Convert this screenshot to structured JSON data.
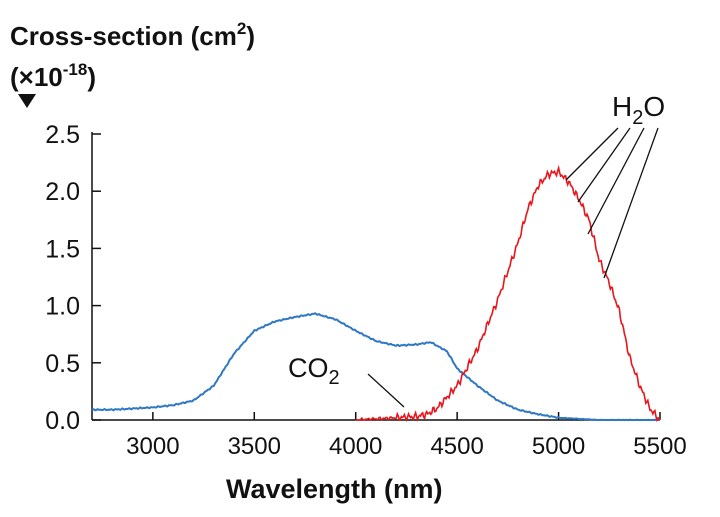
{
  "chart_data": {
    "type": "line",
    "ylabel_line1": "Cross-section (cm",
    "ylabel_sup1": "2",
    "ylabel_close": ")",
    "ylabel_line2_a": "(×10",
    "ylabel_sup2": "-18",
    "ylabel_line2_b": ")",
    "xlabel": "Wavelength (nm)",
    "xlim": [
      2700,
      5500
    ],
    "ylim": [
      0,
      2.5
    ],
    "x_ticks": [
      3000,
      3500,
      4000,
      4500,
      5000,
      5500
    ],
    "y_ticks": [
      "0.0",
      "0.5",
      "1.0",
      "1.5",
      "2.0",
      "2.5"
    ],
    "grid": false,
    "series": [
      {
        "name": "CO2",
        "color": "#2f78c4",
        "points": [
          [
            2700,
            0.09
          ],
          [
            2800,
            0.09
          ],
          [
            2900,
            0.1
          ],
          [
            3000,
            0.11
          ],
          [
            3100,
            0.13
          ],
          [
            3200,
            0.17
          ],
          [
            3300,
            0.3
          ],
          [
            3400,
            0.58
          ],
          [
            3500,
            0.78
          ],
          [
            3600,
            0.86
          ],
          [
            3700,
            0.9
          ],
          [
            3800,
            0.93
          ],
          [
            3900,
            0.88
          ],
          [
            4000,
            0.78
          ],
          [
            4100,
            0.69
          ],
          [
            4200,
            0.65
          ],
          [
            4300,
            0.66
          ],
          [
            4370,
            0.68
          ],
          [
            4450,
            0.6
          ],
          [
            4500,
            0.45
          ],
          [
            4600,
            0.3
          ],
          [
            4700,
            0.17
          ],
          [
            4800,
            0.09
          ],
          [
            4900,
            0.05
          ],
          [
            5000,
            0.02
          ],
          [
            5100,
            0.01
          ],
          [
            5200,
            0.0
          ],
          [
            5500,
            0.0
          ]
        ]
      },
      {
        "name": "H2O",
        "color": "#e8161b",
        "points": [
          [
            4000,
            0.0
          ],
          [
            4100,
            0.01
          ],
          [
            4200,
            0.02
          ],
          [
            4300,
            0.03
          ],
          [
            4350,
            0.05
          ],
          [
            4400,
            0.1
          ],
          [
            4500,
            0.3
          ],
          [
            4600,
            0.62
          ],
          [
            4700,
            1.05
          ],
          [
            4800,
            1.55
          ],
          [
            4850,
            1.85
          ],
          [
            4900,
            2.05
          ],
          [
            4950,
            2.15
          ],
          [
            5000,
            2.17
          ],
          [
            5050,
            2.08
          ],
          [
            5100,
            1.93
          ],
          [
            5150,
            1.75
          ],
          [
            5200,
            1.4
          ],
          [
            5250,
            1.2
          ],
          [
            5300,
            0.95
          ],
          [
            5350,
            0.55
          ],
          [
            5400,
            0.3
          ],
          [
            5450,
            0.1
          ],
          [
            5500,
            0.0
          ]
        ]
      }
    ],
    "annotations": [
      {
        "label": "CO",
        "sub": "2"
      },
      {
        "label": "H",
        "sub": "2",
        "suffix": "O"
      }
    ]
  }
}
